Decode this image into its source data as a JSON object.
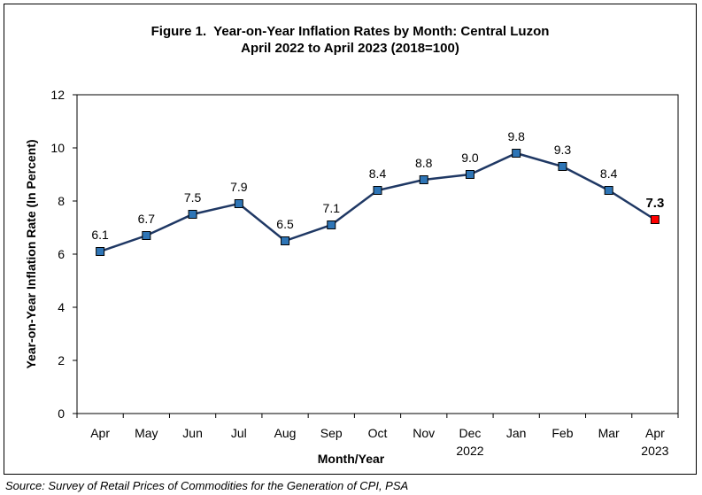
{
  "chart_data": {
    "type": "line",
    "title": "Figure 1.  Year-on-Year Inflation Rates by Month: Central Luzon",
    "subtitle": "April 2022 to April 2023 (2018=100)",
    "xlabel": "Month/Year",
    "ylabel": "Year-on-Year Inflation Rate (In Percent)",
    "ylim": [
      0,
      12
    ],
    "yticks": [
      0,
      2,
      4,
      6,
      8,
      10,
      12
    ],
    "categories": [
      "Apr",
      "May",
      "Jun",
      "Jul",
      "Aug",
      "Sep",
      "Oct",
      "Nov",
      "Dec",
      "Jan",
      "Feb",
      "Mar",
      "Apr"
    ],
    "year_labels": [
      "",
      "",
      "",
      "",
      "",
      "",
      "",
      "",
      "2022",
      "",
      "",
      "",
      "2023"
    ],
    "values": [
      6.1,
      6.7,
      7.5,
      7.9,
      6.5,
      7.1,
      8.4,
      8.8,
      9.0,
      9.8,
      9.3,
      8.4,
      7.3
    ],
    "data_labels": [
      "6.1",
      "6.7",
      "7.5",
      "7.9",
      "6.5",
      "7.1",
      "8.4",
      "8.8",
      "9.0",
      "9.8",
      "9.3",
      "8.4",
      "7.3"
    ],
    "highlight_index": 12,
    "grid": false,
    "colors": {
      "line": "#1f3864",
      "marker": "#2e75b6",
      "highlight_marker": "#ff0000",
      "marker_edge": "#000000"
    }
  },
  "source": "Source: Survey of Retail Prices of Commodities for the Generation of CPI, PSA"
}
